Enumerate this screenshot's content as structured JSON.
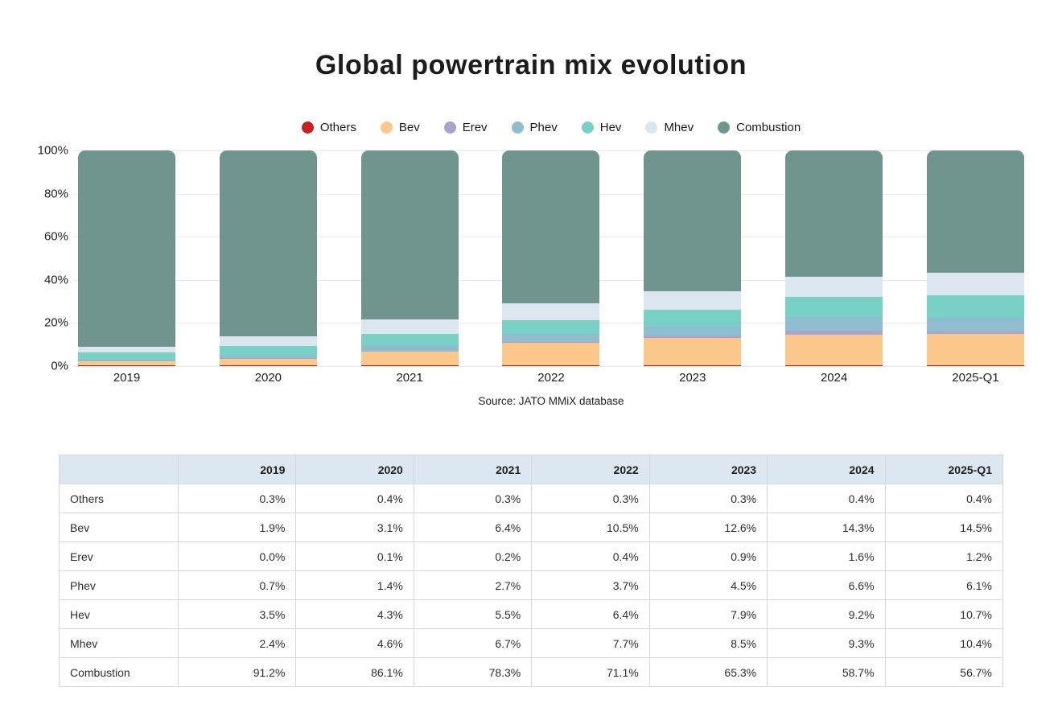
{
  "title": "Global powertrain mix evolution",
  "source": "Source: JATO MMiX database",
  "chart_data": {
    "type": "stacked-bar",
    "title": "Global powertrain mix evolution",
    "categories": [
      "2019",
      "2020",
      "2021",
      "2022",
      "2023",
      "2024",
      "2025-Q1"
    ],
    "series": [
      {
        "name": "Others",
        "color": "#c91f1f",
        "values": [
          0.3,
          0.4,
          0.3,
          0.3,
          0.3,
          0.4,
          0.4
        ]
      },
      {
        "name": "Bev",
        "color": "#fbc78b",
        "values": [
          1.9,
          3.1,
          6.4,
          10.5,
          12.6,
          14.3,
          14.5
        ]
      },
      {
        "name": "Erev",
        "color": "#a8a3ca",
        "values": [
          0.0,
          0.1,
          0.2,
          0.4,
          0.9,
          1.6,
          1.2
        ]
      },
      {
        "name": "Phev",
        "color": "#8fbccf",
        "values": [
          0.7,
          1.4,
          2.7,
          3.7,
          4.5,
          6.6,
          6.1
        ]
      },
      {
        "name": "Hev",
        "color": "#79d1c5",
        "values": [
          3.5,
          4.3,
          5.5,
          6.4,
          7.9,
          9.2,
          10.7
        ]
      },
      {
        "name": "Mhev",
        "color": "#dce6ef",
        "values": [
          2.4,
          4.6,
          6.7,
          7.7,
          8.5,
          9.3,
          10.4
        ]
      },
      {
        "name": "Combustion",
        "color": "#70958f",
        "values": [
          91.2,
          86.1,
          78.3,
          71.1,
          65.3,
          58.7,
          56.7
        ]
      }
    ],
    "stack_order_bottom_to_top": [
      "Others",
      "Bev",
      "Erev",
      "Phev",
      "Hev",
      "Mhev",
      "Combustion"
    ],
    "y_ticks": [
      "100%",
      "80%",
      "60%",
      "40%",
      "20%",
      "0%"
    ],
    "ylim": [
      0,
      100
    ],
    "grid": true,
    "legend_position": "top",
    "value_format": "percent",
    "xlabel": "",
    "ylabel": ""
  },
  "table": {
    "header": [
      "",
      "2019",
      "2020",
      "2021",
      "2022",
      "2023",
      "2024",
      "2025-Q1"
    ],
    "rows": [
      {
        "label": "Others",
        "values": [
          "0.3%",
          "0.4%",
          "0.3%",
          "0.3%",
          "0.3%",
          "0.4%",
          "0.4%"
        ]
      },
      {
        "label": "Bev",
        "values": [
          "1.9%",
          "3.1%",
          "6.4%",
          "10.5%",
          "12.6%",
          "14.3%",
          "14.5%"
        ]
      },
      {
        "label": "Erev",
        "values": [
          "0.0%",
          "0.1%",
          "0.2%",
          "0.4%",
          "0.9%",
          "1.6%",
          "1.2%"
        ]
      },
      {
        "label": "Phev",
        "values": [
          "0.7%",
          "1.4%",
          "2.7%",
          "3.7%",
          "4.5%",
          "6.6%",
          "6.1%"
        ]
      },
      {
        "label": "Hev",
        "values": [
          "3.5%",
          "4.3%",
          "5.5%",
          "6.4%",
          "7.9%",
          "9.2%",
          "10.7%"
        ]
      },
      {
        "label": "Mhev",
        "values": [
          "2.4%",
          "4.6%",
          "6.7%",
          "7.7%",
          "8.5%",
          "9.3%",
          "10.4%"
        ]
      },
      {
        "label": "Combustion",
        "values": [
          "91.2%",
          "86.1%",
          "78.3%",
          "71.1%",
          "65.3%",
          "58.7%",
          "56.7%"
        ]
      }
    ]
  }
}
